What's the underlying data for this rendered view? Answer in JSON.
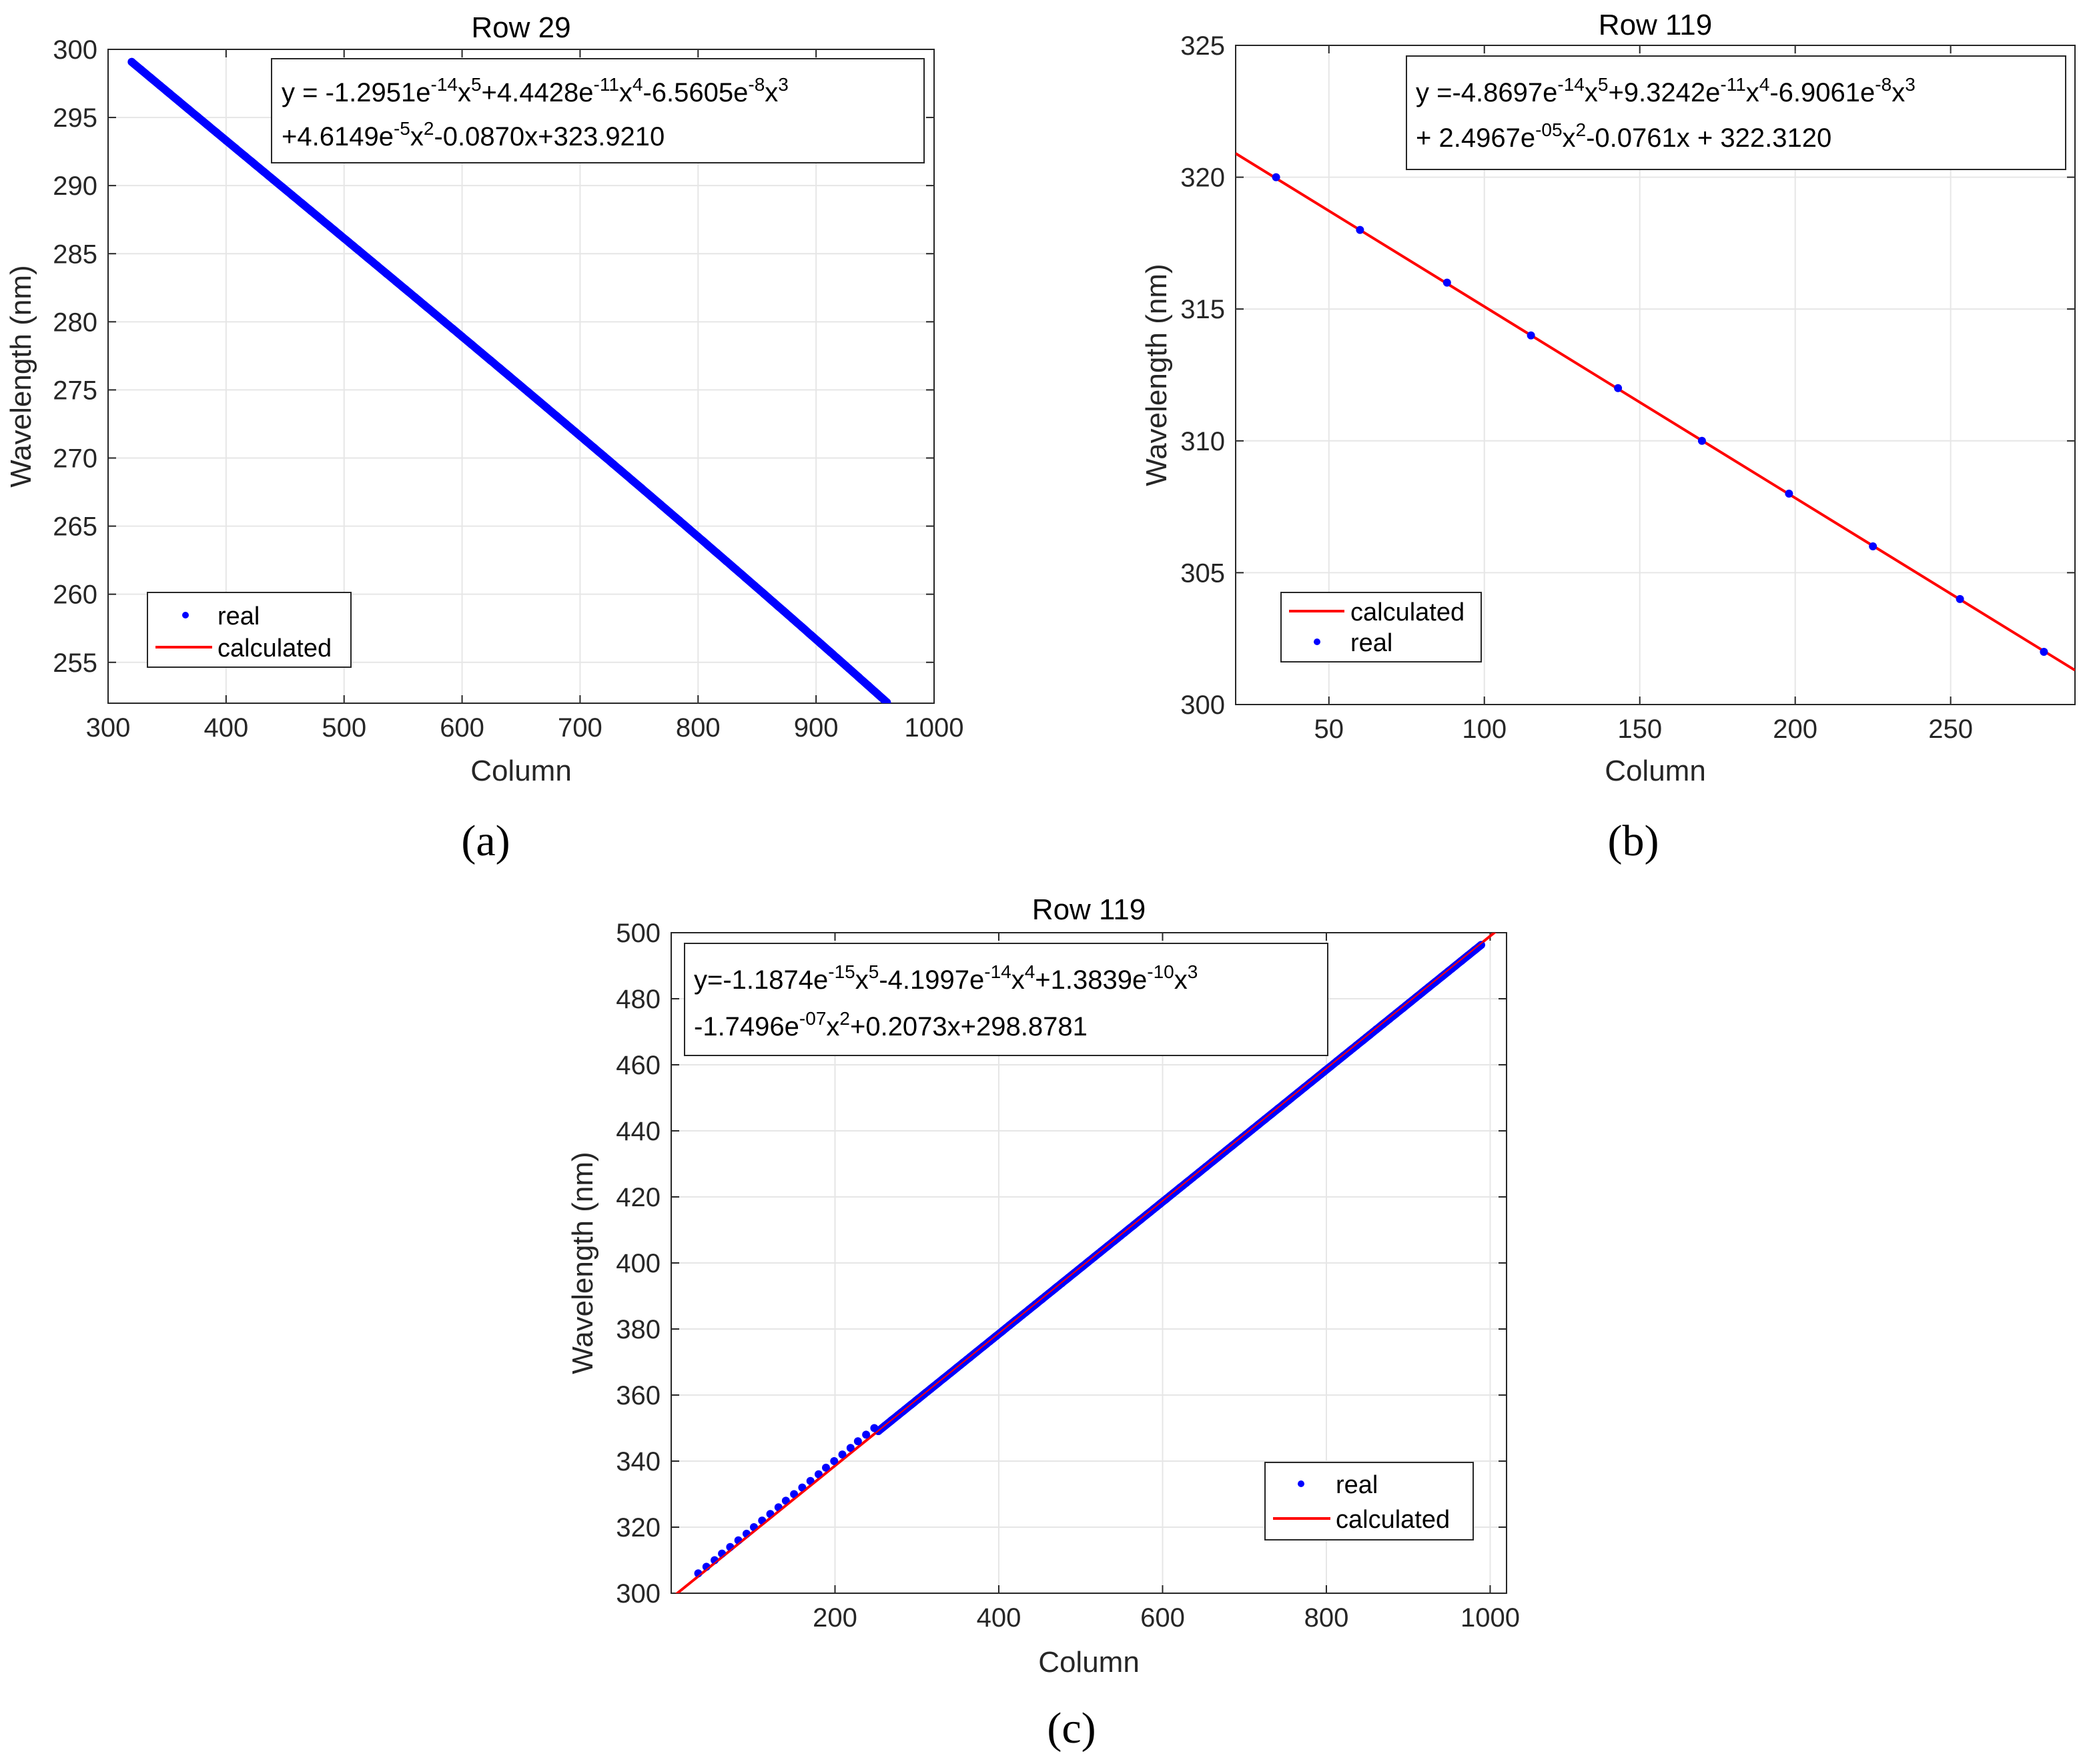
{
  "chart_data": [
    {
      "id": "a",
      "type": "line",
      "title": "Row 29",
      "xlabel": "Column",
      "ylabel": "Wavelength (nm)",
      "xlim": [
        300,
        1000
      ],
      "ylim": [
        252,
        300
      ],
      "xticks": [
        300,
        400,
        500,
        600,
        700,
        800,
        900,
        1000
      ],
      "yticks": [
        255,
        260,
        265,
        270,
        275,
        280,
        285,
        290,
        295,
        300
      ],
      "panel_label": "(a)",
      "equation": {
        "line1": {
          "p1": "y = -1.2951e",
          "s1": "-14",
          "p2": "x",
          "s2": "5",
          "p3": "+4.4428e",
          "s3": "-11",
          "p4": "x",
          "s4": "4",
          "p5": "-6.5605e",
          "s5": "-8",
          "p6": "x",
          "s6": "3"
        },
        "line2": {
          "p1": "+4.6149e",
          "s1": "-5",
          "p2": "x",
          "s2": "2",
          "p3": "-0.0870x+323.9210"
        }
      },
      "legend": {
        "placement": "bottom-left",
        "items": [
          {
            "label": "real",
            "kind": "marker"
          },
          {
            "label": "calculated",
            "kind": "line"
          }
        ]
      },
      "series": [
        {
          "name": "real",
          "kind": "dense-points",
          "x_range": [
            320,
            960
          ],
          "coeffs": [
            323.921,
            -0.087,
            4.6149e-05,
            -6.5605e-08,
            4.4428e-11,
            -1.2951e-14
          ]
        },
        {
          "name": "calculated",
          "kind": "line",
          "x_range": [
            320,
            960
          ],
          "coeffs": [
            323.921,
            -0.087,
            4.6149e-05,
            -6.5605e-08,
            4.4428e-11,
            -1.2951e-14
          ]
        }
      ]
    },
    {
      "id": "b",
      "type": "line",
      "title": "Row 119",
      "xlabel": "Column",
      "ylabel": "Wavelength (nm)",
      "xlim": [
        20,
        290
      ],
      "ylim": [
        300,
        325
      ],
      "xticks": [
        50,
        100,
        150,
        200,
        250
      ],
      "yticks": [
        300,
        305,
        310,
        315,
        320,
        325
      ],
      "panel_label": "(b)",
      "equation": {
        "line1": {
          "p1": "y =-4.8697e",
          "s1": "-14",
          "p2": "x",
          "s2": "5",
          "p3": "+9.3242e",
          "s3": "-11",
          "p4": "x",
          "s4": "4",
          "p5": "-6.9061e",
          "s5": "-8",
          "p6": "x",
          "s6": "3"
        },
        "line2": {
          "p1": "+ 2.4967e",
          "s1": "-05",
          "p2": "x",
          "s2": "2",
          "p3": "-0.0761x + 322.3120"
        }
      },
      "legend": {
        "placement": "bottom-left",
        "items": [
          {
            "label": "calculated",
            "kind": "line"
          },
          {
            "label": "real",
            "kind": "marker"
          }
        ]
      },
      "series": [
        {
          "name": "real",
          "kind": "points",
          "x": [
            33,
            60,
            88,
            115,
            143,
            170,
            198,
            225,
            253,
            280
          ],
          "y": [
            320,
            318,
            316,
            314,
            312,
            310,
            308,
            306,
            304,
            302
          ]
        },
        {
          "name": "calculated",
          "kind": "line",
          "x": [
            20,
            290
          ],
          "y": [
            320.9,
            301.3
          ]
        }
      ]
    },
    {
      "id": "c",
      "type": "line",
      "title": "Row 119",
      "xlabel": "Column",
      "ylabel": "Wavelength (nm)",
      "xlim": [
        0,
        1020
      ],
      "ylim": [
        300,
        500
      ],
      "xticks": [
        200,
        400,
        600,
        800,
        1000
      ],
      "yticks": [
        300,
        320,
        340,
        360,
        380,
        400,
        420,
        440,
        460,
        480,
        500
      ],
      "panel_label": "(c)",
      "equation": {
        "line1": {
          "p1": "y=-1.1874e",
          "s1": "-15",
          "p2": "x",
          "s2": "5",
          "p3": "-4.1997e",
          "s3": "-14",
          "p4": "x",
          "s4": "4",
          "p5": "+1.3839e",
          "s5": "-10",
          "p6": "x",
          "s6": "3"
        },
        "line2": {
          "p1": "-1.7496e",
          "s1": "-07",
          "p2": "x",
          "s2": "2",
          "p3": "+0.2073x+298.8781"
        }
      },
      "legend": {
        "placement": "bottom-right",
        "items": [
          {
            "label": "real",
            "kind": "marker"
          },
          {
            "label": "calculated",
            "kind": "line"
          }
        ]
      },
      "series": [
        {
          "name": "real",
          "kind": "points",
          "x": [
            33,
            43,
            53,
            62,
            72,
            82,
            92,
            101,
            111,
            121,
            131,
            140,
            150,
            160,
            170,
            180,
            189,
            199,
            209,
            219,
            228,
            238,
            248
          ],
          "y": [
            306,
            308,
            310,
            312,
            314,
            316,
            318,
            320,
            322,
            324,
            326,
            328,
            330,
            332,
            334,
            336,
            338,
            340,
            342,
            344,
            346,
            348,
            350
          ]
        },
        {
          "name": "real-dense",
          "kind": "dense-points",
          "x_range": [
            253,
            990
          ],
          "linear": [
            298.5,
            0.2
          ]
        },
        {
          "name": "calculated",
          "kind": "line",
          "x": [
            5,
            1020
          ],
          "y": [
            299.5,
            503
          ]
        }
      ]
    }
  ],
  "colors": {
    "real": "#0000ff",
    "calculated": "#ff0000",
    "grid": "#e6e6e6",
    "axis": "#262626"
  }
}
